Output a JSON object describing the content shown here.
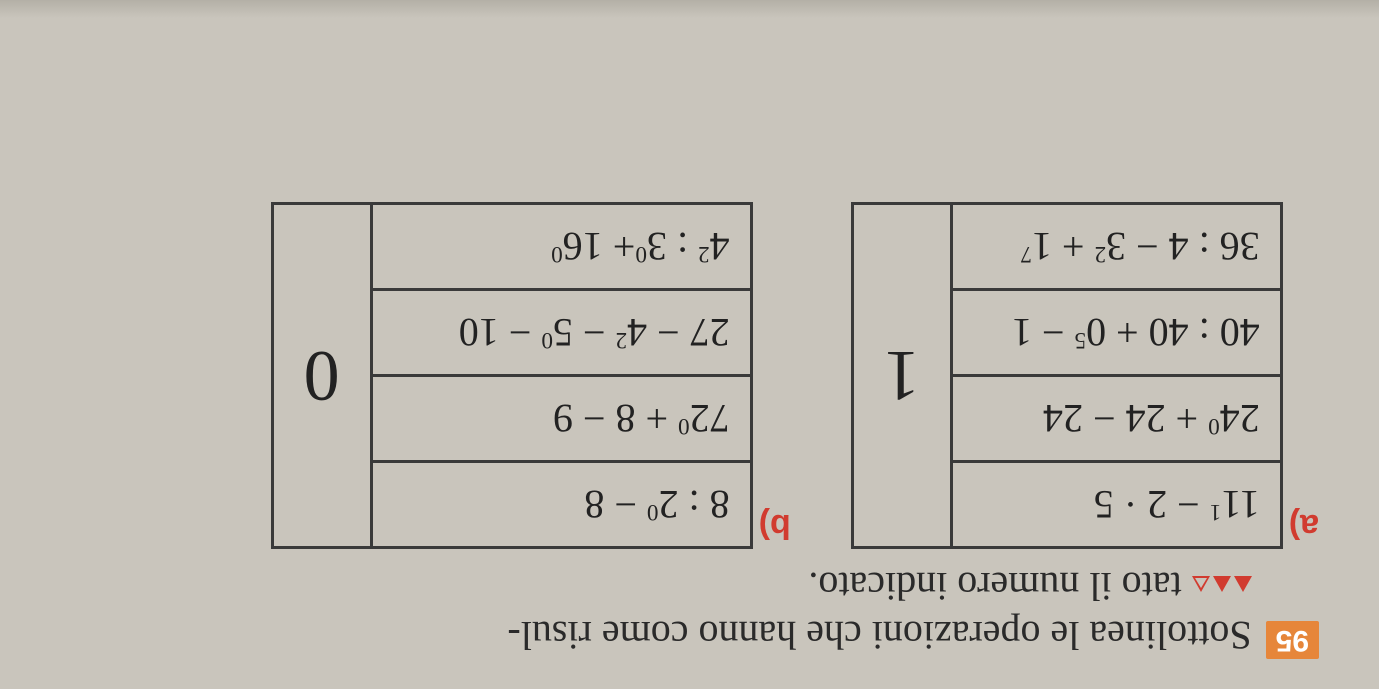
{
  "exercise_number": "95",
  "instruction_line1": "Sottolinea le operazioni che hanno come risul-",
  "instruction_line2": "tato il numero indicato.",
  "columns": {
    "a": {
      "label": "a)",
      "rows": [
        {
          "base1": "11",
          "exp1": "1",
          "mid": " − 2 · 5"
        },
        {
          "base1": "24",
          "exp1": "0",
          "mid": " + 24 − 24"
        },
        {
          "base1": "40 : 40 + 0",
          "exp1": "5",
          "mid": " − 1"
        },
        {
          "base1": "36 : 4 − 3",
          "exp1": "2",
          "mid": " + 1",
          "exp2": "7"
        }
      ],
      "result": "1"
    },
    "b": {
      "label": "b)",
      "rows": [
        {
          "text": "8 : 2",
          "e1": "0",
          "tail": " − 8"
        },
        {
          "text": "72",
          "e1": "0",
          "tail": " + 8 − 9"
        },
        {
          "text": "27 − 4",
          "e1": "2",
          "mid": " − 5",
          "e2": "0",
          "tail": " − 10"
        },
        {
          "text": "4",
          "e1": "2",
          "mid": " : 3",
          "e2": "0",
          "tail": "+ 16",
          "e3": "0"
        }
      ],
      "result": "0"
    }
  },
  "style": {
    "bg": "#c9c5bc",
    "border": "#3a3a3a",
    "badge_bg": "#e6863a",
    "accent": "#d13b2f",
    "text": "#2a2a2a"
  }
}
